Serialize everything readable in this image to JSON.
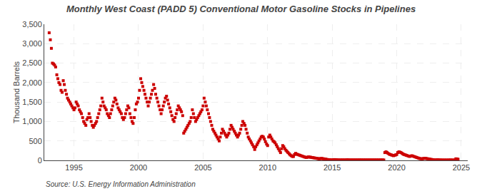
{
  "chart_data": {
    "type": "scatter",
    "title": "Monthly West Coast (PADD 5) Conventional Motor Gasoline Stocks in Pipelines",
    "y_label": "Thousand Barrels",
    "annotations": [
      "Source: U.S. Energy Information Administration"
    ],
    "color": "#cc0000",
    "marker": "square",
    "grid": true,
    "xlim": [
      1992.7,
      2025.5
    ],
    "xticks": [
      1995,
      2000,
      2005,
      2010,
      2015,
      2020,
      2025
    ],
    "ylim": [
      0,
      3500
    ],
    "yticks": [
      0,
      500,
      {
        "value": 1000,
        "label": "1,000"
      },
      {
        "value": 1500,
        "label": "1,500"
      },
      {
        "value": 2000,
        "label": "2,000"
      },
      {
        "value": 2500,
        "label": "2,500"
      },
      {
        "value": 3000,
        "label": "3,000"
      },
      {
        "value": 3500,
        "label": "3,500"
      }
    ],
    "x": [
      1993.08,
      1993.17,
      1993.25,
      1993.33,
      1993.42,
      1993.5,
      1993.58,
      1993.67,
      1993.75,
      1993.83,
      1993.92,
      1994.0,
      1994.08,
      1994.17,
      1994.25,
      1994.33,
      1994.42,
      1994.5,
      1994.58,
      1994.67,
      1994.75,
      1994.83,
      1994.92,
      1995.0,
      1995.08,
      1995.17,
      1995.25,
      1995.33,
      1995.42,
      1995.5,
      1995.58,
      1995.67,
      1995.75,
      1995.83,
      1995.92,
      1996.0,
      1996.08,
      1996.17,
      1996.25,
      1996.33,
      1996.42,
      1996.5,
      1996.58,
      1996.67,
      1996.75,
      1996.83,
      1996.92,
      1997.0,
      1997.08,
      1997.17,
      1997.25,
      1997.33,
      1997.42,
      1997.5,
      1997.58,
      1997.67,
      1997.75,
      1997.83,
      1997.92,
      1998.0,
      1998.08,
      1998.17,
      1998.25,
      1998.33,
      1998.42,
      1998.5,
      1998.58,
      1998.67,
      1998.75,
      1998.83,
      1998.92,
      1999.0,
      1999.08,
      1999.17,
      1999.25,
      1999.33,
      1999.42,
      1999.5,
      1999.58,
      1999.67,
      1999.75,
      1999.83,
      1999.92,
      2000.0,
      2000.08,
      2000.17,
      2000.25,
      2000.33,
      2000.42,
      2000.5,
      2000.58,
      2000.67,
      2000.75,
      2000.83,
      2000.92,
      2001.0,
      2001.08,
      2001.17,
      2001.25,
      2001.33,
      2001.42,
      2001.5,
      2001.58,
      2001.67,
      2001.75,
      2001.83,
      2001.92,
      2002.0,
      2002.08,
      2002.17,
      2002.25,
      2002.33,
      2002.42,
      2002.5,
      2002.58,
      2002.67,
      2002.75,
      2002.83,
      2002.92,
      2003.0,
      2003.08,
      2003.17,
      2003.25,
      2003.33,
      2003.42,
      2003.5,
      2003.58,
      2003.67,
      2003.75,
      2003.83,
      2003.92,
      2004.0,
      2004.08,
      2004.17,
      2004.25,
      2004.33,
      2004.42,
      2004.5,
      2004.58,
      2004.67,
      2004.75,
      2004.83,
      2004.92,
      2005.0,
      2005.08,
      2005.17,
      2005.25,
      2005.33,
      2005.42,
      2005.5,
      2005.58,
      2005.67,
      2005.75,
      2005.83,
      2005.92,
      2006.0,
      2006.08,
      2006.17,
      2006.25,
      2006.33,
      2006.42,
      2006.5,
      2006.58,
      2006.67,
      2006.75,
      2006.83,
      2006.92,
      2007.0,
      2007.08,
      2007.17,
      2007.25,
      2007.33,
      2007.42,
      2007.5,
      2007.58,
      2007.67,
      2007.75,
      2007.83,
      2007.92,
      2008.0,
      2008.08,
      2008.17,
      2008.25,
      2008.33,
      2008.42,
      2008.5,
      2008.58,
      2008.67,
      2008.75,
      2008.83,
      2008.92,
      2009.0,
      2009.08,
      2009.17,
      2009.25,
      2009.33,
      2009.42,
      2009.5,
      2009.58,
      2009.67,
      2009.75,
      2009.83,
      2009.92,
      2010.0,
      2010.08,
      2010.17,
      2010.25,
      2010.33,
      2010.42,
      2010.5,
      2010.58,
      2010.67,
      2010.75,
      2010.83,
      2010.92,
      2011.0,
      2011.08,
      2011.17,
      2011.25,
      2011.33,
      2011.42,
      2011.5,
      2011.58,
      2011.67,
      2011.75,
      2011.83,
      2011.92,
      2012.0,
      2012.08,
      2012.17,
      2012.25,
      2012.33,
      2012.42,
      2012.5,
      2012.58,
      2012.67,
      2012.75,
      2012.83,
      2012.92,
      2013.0,
      2013.08,
      2013.17,
      2013.25,
      2013.33,
      2013.42,
      2013.5,
      2013.58,
      2013.67,
      2013.75,
      2013.83,
      2013.92,
      2014.0,
      2014.08,
      2014.17,
      2014.25,
      2014.33,
      2014.42,
      2014.5,
      2014.58,
      2014.67,
      2014.75,
      2014.83,
      2014.92,
      2015.0,
      2015.08,
      2015.17,
      2015.25,
      2015.33,
      2015.42,
      2015.5,
      2015.58,
      2015.67,
      2015.75,
      2015.83,
      2015.92,
      2016.0,
      2016.08,
      2016.17,
      2016.25,
      2016.33,
      2016.42,
      2016.5,
      2016.58,
      2016.67,
      2016.75,
      2016.83,
      2016.92,
      2017.0,
      2017.08,
      2017.17,
      2017.25,
      2017.33,
      2017.42,
      2017.5,
      2017.58,
      2017.67,
      2017.75,
      2017.83,
      2017.92,
      2018.0,
      2018.08,
      2018.17,
      2018.25,
      2018.33,
      2018.42,
      2018.5,
      2018.58,
      2018.67,
      2018.75,
      2018.83,
      2018.92,
      2019.0,
      2019.08,
      2019.17,
      2019.25,
      2019.33,
      2019.42,
      2019.5,
      2019.58,
      2019.67,
      2019.75,
      2019.83,
      2019.92,
      2020.0,
      2020.08,
      2020.17,
      2020.25,
      2020.33,
      2020.42,
      2020.5,
      2020.58,
      2020.67,
      2020.75,
      2020.83,
      2020.92,
      2021.0,
      2021.08,
      2021.17,
      2021.25,
      2021.33,
      2021.42,
      2021.5,
      2021.58,
      2021.67,
      2021.75,
      2021.83,
      2021.92,
      2022.0,
      2022.08,
      2022.17,
      2022.25,
      2022.33,
      2022.42,
      2022.5,
      2022.58,
      2022.67,
      2022.75,
      2022.83,
      2022.92,
      2023.0,
      2023.08,
      2023.17,
      2023.25,
      2023.33,
      2023.42,
      2023.5,
      2023.58,
      2023.67,
      2023.75,
      2023.83,
      2023.92,
      2024.0,
      2024.08,
      2024.17,
      2024.25,
      2024.33,
      2024.42,
      2024.5,
      2024.58,
      2024.67,
      2024.75
    ],
    "values": [
      3280,
      3100,
      2880,
      2500,
      2480,
      2450,
      2400,
      2200,
      2100,
      2000,
      1950,
      1800,
      1750,
      2050,
      1950,
      1800,
      1700,
      1600,
      1550,
      1500,
      1450,
      1400,
      1350,
      1300,
      1350,
      1500,
      1450,
      1400,
      1300,
      1250,
      1200,
      1100,
      1000,
      950,
      900,
      1050,
      1100,
      1200,
      1100,
      1000,
      900,
      850,
      900,
      950,
      1000,
      1100,
      1200,
      1300,
      1400,
      1600,
      1500,
      1400,
      1350,
      1300,
      1200,
      1150,
      1100,
      1200,
      1300,
      1400,
      1500,
      1600,
      1550,
      1450,
      1350,
      1300,
      1250,
      1200,
      1100,
      1050,
      1100,
      1200,
      1300,
      1400,
      1350,
      1200,
      1100,
      1000,
      950,
      1100,
      1300,
      1450,
      1500,
      1600,
      1800,
      2100,
      2000,
      1900,
      1800,
      1700,
      1600,
      1500,
      1400,
      1500,
      1600,
      1700,
      1800,
      1950,
      1850,
      1700,
      1600,
      1500,
      1400,
      1300,
      1200,
      1300,
      1400,
      1500,
      1600,
      1650,
      1550,
      1450,
      1350,
      1250,
      1150,
      1050,
      1000,
      1100,
      1200,
      1300,
      1400,
      1350,
      1300,
      1250,
      1150,
      700,
      750,
      800,
      850,
      900,
      950,
      1000,
      1100,
      1300,
      1200,
      1100,
      1000,
      1050,
      1100,
      1150,
      1200,
      1250,
      1300,
      1400,
      1600,
      1500,
      1400,
      1300,
      1200,
      1100,
      1000,
      900,
      800,
      750,
      700,
      650,
      600,
      550,
      500,
      600,
      700,
      800,
      750,
      700,
      650,
      600,
      650,
      700,
      800,
      900,
      850,
      800,
      750,
      700,
      650,
      600,
      650,
      700,
      800,
      900,
      1000,
      950,
      900,
      800,
      700,
      600,
      550,
      500,
      450,
      400,
      350,
      280,
      350,
      400,
      450,
      500,
      550,
      600,
      620,
      600,
      550,
      480,
      420,
      380,
      600,
      650,
      600,
      550,
      500,
      480,
      450,
      400,
      350,
      300,
      250,
      200,
      300,
      380,
      350,
      300,
      260,
      230,
      200,
      170,
      140,
      120,
      100,
      100,
      150,
      180,
      160,
      150,
      140,
      130,
      120,
      110,
      100,
      90,
      80,
      75,
      80,
      90,
      85,
      80,
      75,
      70,
      65,
      60,
      55,
      50,
      45,
      40,
      45,
      50,
      45,
      40,
      35,
      30,
      25,
      20,
      18,
      15,
      12,
      10,
      15,
      20,
      18,
      15,
      12,
      10,
      10,
      10,
      10,
      10,
      10,
      10,
      10,
      15,
      12,
      10,
      10,
      10,
      10,
      10,
      10,
      10,
      10,
      10,
      10,
      12,
      10,
      10,
      10,
      10,
      10,
      10,
      10,
      10,
      10,
      10,
      10,
      10,
      10,
      10,
      10,
      10,
      10,
      10,
      10,
      10,
      10,
      10,
      200,
      220,
      200,
      180,
      160,
      150,
      140,
      130,
      120,
      130,
      140,
      150,
      200,
      220,
      210,
      200,
      180,
      160,
      150,
      140,
      130,
      120,
      110,
      100,
      110,
      120,
      110,
      100,
      90,
      80,
      70,
      60,
      50,
      45,
      40,
      40,
      50,
      55,
      50,
      45,
      40,
      35,
      30,
      25,
      20,
      15,
      10,
      10,
      12,
      15,
      12,
      10,
      10,
      8,
      8,
      8,
      8,
      8,
      8,
      8,
      10,
      10,
      8,
      8,
      8,
      8,
      40,
      35,
      30
    ]
  }
}
